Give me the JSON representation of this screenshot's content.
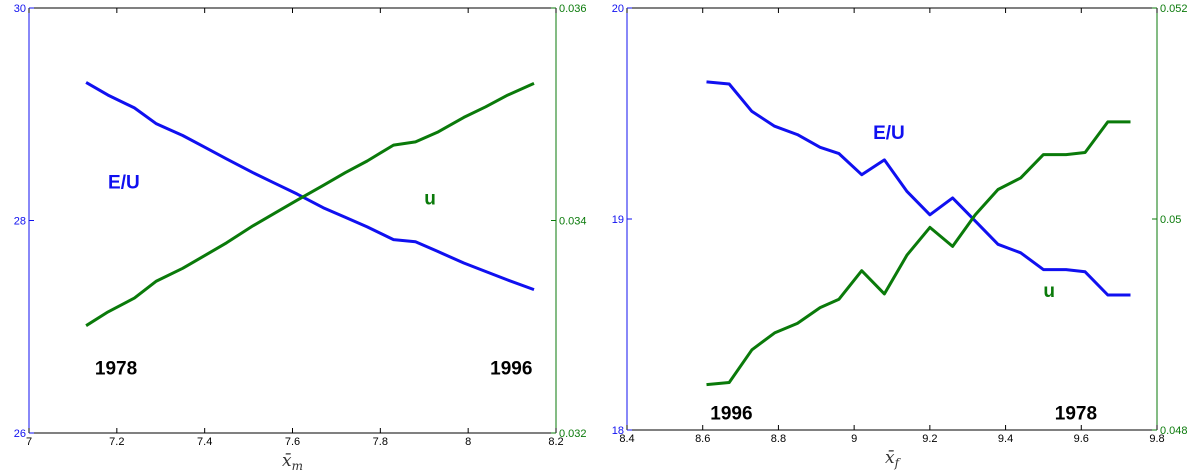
{
  "colors": {
    "left_axis": "#1010f0",
    "right_axis": "#0a7a0a",
    "frame": "#000000",
    "background": "#ffffff"
  },
  "chart_data": [
    {
      "type": "line",
      "xlabel": "x̄",
      "xlabel_sub": "m",
      "x_ticks": [
        "7",
        "7.2",
        "7.4",
        "7.6",
        "7.8",
        "8",
        "8.2"
      ],
      "xlim": [
        7,
        8.2
      ],
      "ylim_left": [
        26,
        30
      ],
      "y_ticks_left": [
        "26",
        "28",
        "30"
      ],
      "ylim_right": [
        0.032,
        0.036
      ],
      "y_ticks_right": [
        "0.032",
        "0.034",
        "0.036"
      ],
      "grid": false,
      "series": [
        {
          "name": "E/U",
          "axis": "left",
          "color": "#1010f0",
          "x": [
            7.13,
            7.18,
            7.24,
            7.29,
            7.35,
            7.4,
            7.45,
            7.51,
            7.56,
            7.61,
            7.67,
            7.72,
            7.77,
            7.83,
            7.88,
            7.93,
            7.99,
            8.04,
            8.09,
            8.15
          ],
          "y": [
            29.3,
            29.18,
            29.06,
            28.91,
            28.8,
            28.69,
            28.58,
            28.45,
            28.35,
            28.25,
            28.12,
            28.03,
            27.94,
            27.82,
            27.8,
            27.71,
            27.6,
            27.52,
            27.44,
            27.35
          ]
        },
        {
          "name": "u",
          "axis": "right",
          "color": "#0a7a0a",
          "x": [
            7.13,
            7.18,
            7.24,
            7.29,
            7.35,
            7.4,
            7.45,
            7.51,
            7.56,
            7.61,
            7.67,
            7.72,
            7.77,
            7.83,
            7.88,
            7.93,
            7.99,
            8.04,
            8.09,
            8.15
          ],
          "y": [
            0.03301,
            0.03314,
            0.03327,
            0.03343,
            0.03355,
            0.03367,
            0.03379,
            0.03395,
            0.03407,
            0.03419,
            0.03433,
            0.03445,
            0.03456,
            0.03471,
            0.03474,
            0.03483,
            0.03497,
            0.03507,
            0.03518,
            0.03529
          ]
        }
      ],
      "annotations": [
        {
          "text": "E/U",
          "x": 7.18,
          "y": 28.3,
          "axis": "left",
          "color": "#1010f0"
        },
        {
          "text": "u",
          "x": 7.9,
          "y": 28.15,
          "axis": "left",
          "color": "#0a7a0a"
        },
        {
          "text": "1978",
          "x": 7.15,
          "y": 26.55,
          "axis": "left",
          "color": "#000000"
        },
        {
          "text": "1996",
          "x": 8.05,
          "y": 26.55,
          "axis": "left",
          "color": "#000000"
        }
      ]
    },
    {
      "type": "line",
      "xlabel": "x̄",
      "xlabel_sub": "f",
      "x_ticks": [
        "8.4",
        "8.6",
        "8.8",
        "9",
        "9.2",
        "9.4",
        "9.6",
        "9.8"
      ],
      "xlim": [
        8.4,
        9.8
      ],
      "ylim_left": [
        18,
        20
      ],
      "y_ticks_left": [
        "18",
        "19",
        "20"
      ],
      "ylim_right": [
        0.048,
        0.052
      ],
      "y_ticks_right": [
        "0.048",
        "0.05",
        "0.052"
      ],
      "grid": false,
      "series": [
        {
          "name": "E/U",
          "axis": "left",
          "color": "#1010f0",
          "x": [
            8.61,
            8.67,
            8.73,
            8.79,
            8.85,
            8.91,
            8.96,
            9.02,
            9.08,
            9.14,
            9.2,
            9.26,
            9.32,
            9.38,
            9.44,
            9.5,
            9.56,
            9.61,
            9.67,
            9.73
          ],
          "y": [
            19.65,
            19.64,
            19.51,
            19.44,
            19.4,
            19.34,
            19.31,
            19.21,
            19.28,
            19.13,
            19.02,
            19.1,
            18.99,
            18.88,
            18.84,
            18.76,
            18.76,
            18.75,
            18.64,
            18.64
          ]
        },
        {
          "name": "u",
          "axis": "right",
          "color": "#0a7a0a",
          "x": [
            8.61,
            8.67,
            8.73,
            8.79,
            8.85,
            8.91,
            8.96,
            9.02,
            9.08,
            9.14,
            9.2,
            9.26,
            9.32,
            9.38,
            9.44,
            9.5,
            9.56,
            9.61,
            9.67,
            9.73
          ],
          "y": [
            0.04843,
            0.04845,
            0.04876,
            0.04892,
            0.04901,
            0.04916,
            0.04924,
            0.04951,
            0.04929,
            0.04966,
            0.04992,
            0.04974,
            0.05004,
            0.05028,
            0.05039,
            0.05061,
            0.05061,
            0.05063,
            0.05092,
            0.05092
          ]
        }
      ],
      "annotations": [
        {
          "text": "E/U",
          "x": 9.05,
          "y": 19.38,
          "axis": "left",
          "color": "#1010f0"
        },
        {
          "text": "u",
          "x": 9.5,
          "y": 18.63,
          "axis": "left",
          "color": "#0a7a0a"
        },
        {
          "text": "1996",
          "x": 8.62,
          "y": 18.05,
          "axis": "left",
          "color": "#000000"
        },
        {
          "text": "1978",
          "x": 9.53,
          "y": 18.05,
          "axis": "left",
          "color": "#000000"
        }
      ]
    }
  ]
}
